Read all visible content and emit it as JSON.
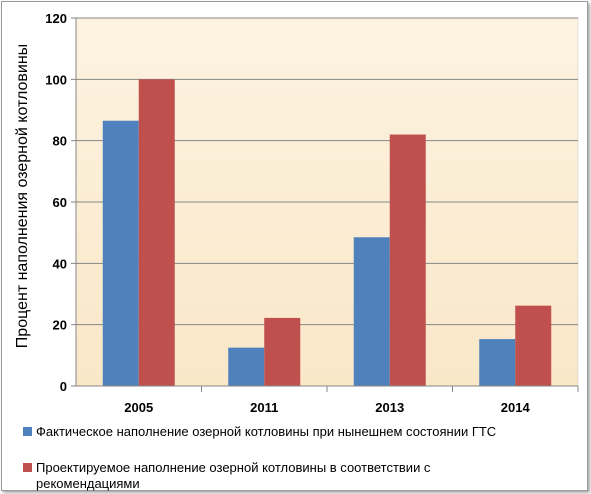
{
  "chart_data": {
    "type": "bar",
    "categories": [
      "2005",
      "2011",
      "2013",
      "2014"
    ],
    "series": [
      {
        "name": "Фактическое наполнение озерной котловины при нынешнем состоянии ГТС",
        "values": [
          86.5,
          12.5,
          48.5,
          15.3
        ],
        "color": "#4f81bd"
      },
      {
        "name": "Проектируемое наполнение озерной котловины в соответствии с рекомендациями",
        "name_lines": [
          "Проектируемое наполнение озерной котловины в соответствии с",
          "рекомендациями"
        ],
        "values": [
          100,
          22.2,
          82,
          26.2
        ],
        "color": "#c0504d"
      }
    ],
    "ylabel": "Процент наполнения озерной котловины",
    "xlabel": "",
    "ylim": [
      0,
      120
    ],
    "yticks": [
      0,
      20,
      40,
      60,
      80,
      100,
      120
    ],
    "grid": true,
    "legend_position": "bottom",
    "plot_background": "#fbeed5",
    "grid_color": "#868686"
  }
}
